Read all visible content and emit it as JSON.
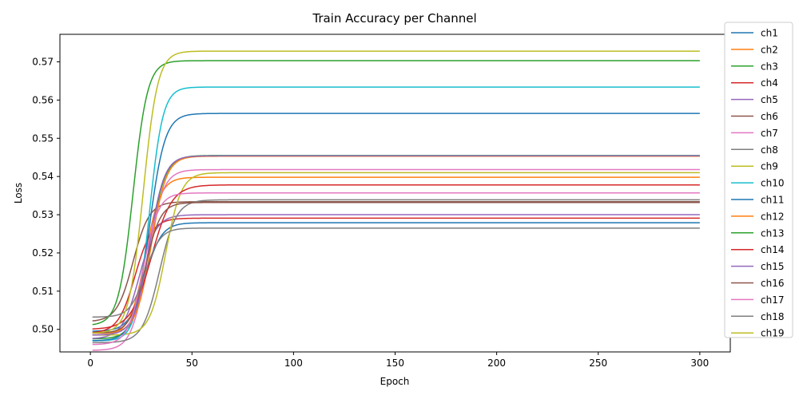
{
  "chart_data": {
    "type": "line",
    "title": "Train Accuracy per Channel",
    "xlabel": "Epoch",
    "ylabel": "Loss",
    "xlim": [
      -15,
      315
    ],
    "ylim": [
      0.4941,
      0.5772
    ],
    "xticks": [
      0,
      50,
      100,
      150,
      200,
      250,
      300
    ],
    "yticks": [
      0.5,
      0.51,
      0.52,
      0.53,
      0.54,
      0.55,
      0.56,
      0.57
    ],
    "ytick_labels": [
      "0.50",
      "0.51",
      "0.52",
      "0.53",
      "0.54",
      "0.55",
      "0.56",
      "0.57"
    ],
    "grid": false,
    "legend_position": "right, outside plot",
    "epochs": [
      1,
      300
    ],
    "series": [
      {
        "name": "ch1",
        "color": "#1f77b4",
        "start": 0.4995,
        "end": 0.5279,
        "midpoint": 27,
        "rate": 0.25
      },
      {
        "name": "ch2",
        "color": "#ff7f0e",
        "start": 0.4985,
        "end": 0.5398,
        "midpoint": 27,
        "rate": 0.27
      },
      {
        "name": "ch3",
        "color": "#2ca02c",
        "start": 0.4975,
        "end": 0.5455,
        "midpoint": 29,
        "rate": 0.26
      },
      {
        "name": "ch4",
        "color": "#d62728",
        "start": 0.499,
        "end": 0.5291,
        "midpoint": 22,
        "rate": 0.24
      },
      {
        "name": "ch5",
        "color": "#9467bd",
        "start": 0.4975,
        "end": 0.53,
        "midpoint": 24,
        "rate": 0.24
      },
      {
        "name": "ch6",
        "color": "#8c564b",
        "start": 0.502,
        "end": 0.5334,
        "midpoint": 21,
        "rate": 0.25
      },
      {
        "name": "ch7",
        "color": "#e377c2",
        "start": 0.4945,
        "end": 0.5418,
        "midpoint": 28,
        "rate": 0.26
      },
      {
        "name": "ch8",
        "color": "#7f7f7f",
        "start": 0.4965,
        "end": 0.5339,
        "midpoint": 34,
        "rate": 0.24
      },
      {
        "name": "ch9",
        "color": "#bcbd22",
        "start": 0.4985,
        "end": 0.541,
        "midpoint": 37,
        "rate": 0.26
      },
      {
        "name": "ch10",
        "color": "#17becf",
        "start": 0.497,
        "end": 0.5634,
        "midpoint": 29,
        "rate": 0.3
      },
      {
        "name": "ch11",
        "color": "#1f77b4",
        "start": 0.497,
        "end": 0.5565,
        "midpoint": 29,
        "rate": 0.26
      },
      {
        "name": "ch12",
        "color": "#ff7f0e",
        "start": 0.499,
        "end": 0.5453,
        "midpoint": 30,
        "rate": 0.27
      },
      {
        "name": "ch13",
        "color": "#2ca02c",
        "start": 0.501,
        "end": 0.5703,
        "midpoint": 21,
        "rate": 0.28
      },
      {
        "name": "ch14",
        "color": "#d62728",
        "start": 0.5,
        "end": 0.5378,
        "midpoint": 30,
        "rate": 0.2
      },
      {
        "name": "ch15",
        "color": "#9467bd",
        "start": 0.4985,
        "end": 0.5454,
        "midpoint": 29,
        "rate": 0.27
      },
      {
        "name": "ch16",
        "color": "#8c564b",
        "start": 0.499,
        "end": 0.5332,
        "midpoint": 27,
        "rate": 0.27
      },
      {
        "name": "ch17",
        "color": "#e377c2",
        "start": 0.496,
        "end": 0.5357,
        "midpoint": 26,
        "rate": 0.27
      },
      {
        "name": "ch18",
        "color": "#7f7f7f",
        "start": 0.5032,
        "end": 0.5265,
        "midpoint": 27,
        "rate": 0.27
      },
      {
        "name": "ch19",
        "color": "#bcbd22",
        "start": 0.499,
        "end": 0.5728,
        "midpoint": 26,
        "rate": 0.28
      }
    ]
  }
}
